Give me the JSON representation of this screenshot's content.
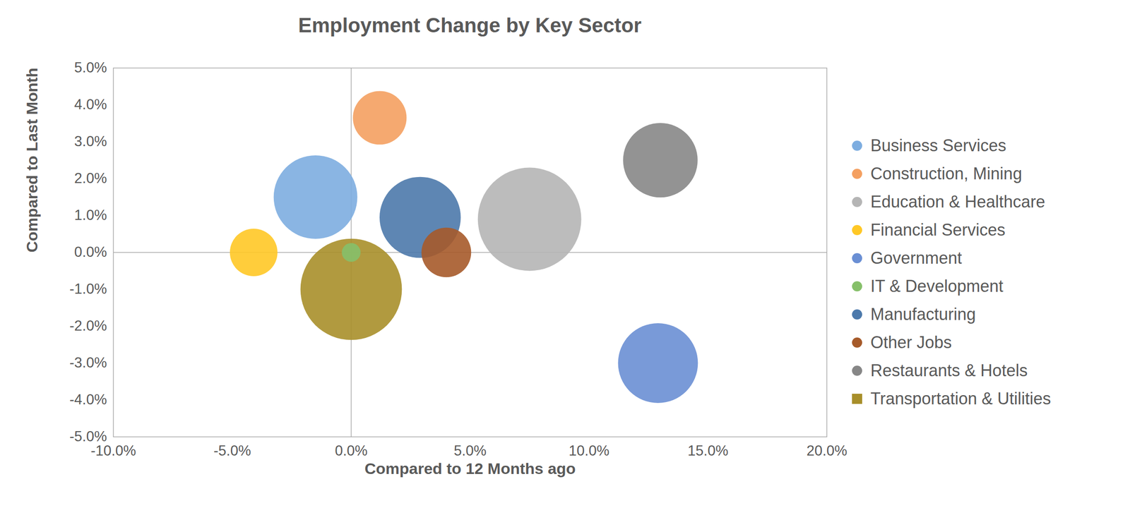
{
  "chart_data": {
    "type": "bubble",
    "title": "Employment Change by Key Sector",
    "x_label": "Compared to 12 Months ago",
    "y_label": "Compared to Last Month",
    "xlim": [
      -10,
      20
    ],
    "xticks": [
      {
        "value": -10,
        "label": "-10.0%"
      },
      {
        "value": -5,
        "label": "-5.0%"
      },
      {
        "value": 0,
        "label": "0.0%"
      },
      {
        "value": 5,
        "label": "5.0%"
      },
      {
        "value": 10,
        "label": "10.0%"
      },
      {
        "value": 15,
        "label": "15.0%"
      },
      {
        "value": 20,
        "label": "20.0%"
      }
    ],
    "ylim": [
      -5,
      5
    ],
    "yticks": [
      {
        "value": -5,
        "label": "-5.0%"
      },
      {
        "value": -4,
        "label": "-4.0%"
      },
      {
        "value": -3,
        "label": "-3.0%"
      },
      {
        "value": -2,
        "label": "-2.0%"
      },
      {
        "value": -1,
        "label": "-1.0%"
      },
      {
        "value": 0,
        "label": "0.0%"
      },
      {
        "value": 1,
        "label": "1.0%"
      },
      {
        "value": 2,
        "label": "2.0%"
      },
      {
        "value": 3,
        "label": "3.0%"
      },
      {
        "value": 4,
        "label": "4.0%"
      },
      {
        "value": 5,
        "label": "5.0%"
      }
    ],
    "grid": false,
    "legend": "right",
    "marker": "circle",
    "series": [
      {
        "name": "Business Services",
        "color": "#7dade0",
        "x": -1.5,
        "y": 1.5,
        "size": 34
      },
      {
        "name": "Construction, Mining",
        "color": "#f4a061",
        "x": 1.2,
        "y": 3.65,
        "size": 14
      },
      {
        "name": "Education & Healthcare",
        "color": "#b5b5b5",
        "x": 7.5,
        "y": 0.9,
        "size": 52
      },
      {
        "name": "Financial Services",
        "color": "#ffc826",
        "x": -4.1,
        "y": 0.0,
        "size": 11
      },
      {
        "name": "Government",
        "color": "#6a8fd4",
        "x": 12.9,
        "y": -3.0,
        "size": 31
      },
      {
        "name": "IT & Development",
        "color": "#86c06a",
        "x": 0.0,
        "y": 0.0,
        "size": 1.7
      },
      {
        "name": "Manufacturing",
        "color": "#4c79ab",
        "x": 2.9,
        "y": 0.95,
        "size": 32
      },
      {
        "name": "Other Jobs",
        "color": "#a65a2a",
        "x": 4.0,
        "y": 0.0,
        "size": 12
      },
      {
        "name": "Restaurants & Hotels",
        "color": "#878787",
        "x": 13.0,
        "y": 2.5,
        "size": 27
      },
      {
        "name": "Transportation & Utilities",
        "color": "#a88f2a",
        "x": 0.0,
        "y": -1.0,
        "size": 50,
        "marker": "square"
      }
    ]
  }
}
